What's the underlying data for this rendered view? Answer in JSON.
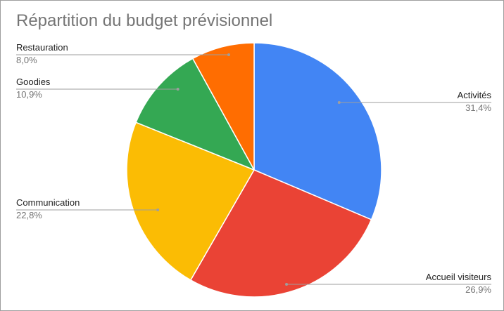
{
  "chart_data": {
    "type": "pie",
    "title": "Répartition du budget prévisionnel",
    "slices": [
      {
        "label": "Activités",
        "value": 31.4,
        "value_label": "31,4%",
        "color": "#4285F4"
      },
      {
        "label": "Accueil visiteurs",
        "value": 26.9,
        "value_label": "26,9%",
        "color": "#EA4335"
      },
      {
        "label": "Communication",
        "value": 22.8,
        "value_label": "22,8%",
        "color": "#FBBC04"
      },
      {
        "label": "Goodies",
        "value": 10.9,
        "value_label": "10,9%",
        "color": "#34A853"
      },
      {
        "label": "Restauration",
        "value": 8.0,
        "value_label": "8,0%",
        "color": "#FF6D01"
      }
    ],
    "legend": "none",
    "label_placement": "outside with leader lines"
  }
}
